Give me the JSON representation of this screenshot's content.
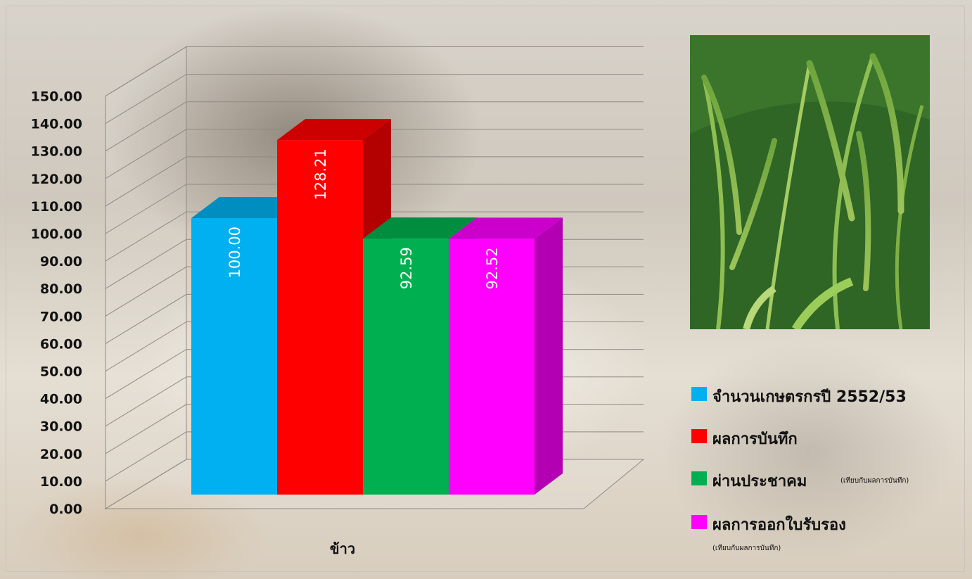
{
  "chart_data": {
    "type": "bar",
    "categories": [
      "ข้าว"
    ],
    "series": [
      {
        "name": "จำนวนเกษตรกรปี  2552/53",
        "values": [
          100.0
        ],
        "color": "#00b0f0"
      },
      {
        "name": "ผลการบันทึก",
        "values": [
          128.21
        ],
        "color": "#ff0000"
      },
      {
        "name": "ผ่านประชาคม",
        "values": [
          92.59
        ],
        "color": "#00b050"
      },
      {
        "name": "ผลการออกใบรับรอง",
        "values": [
          92.52
        ],
        "color": "#ff00ff"
      }
    ],
    "data_labels": [
      "100.00",
      "128.21",
      "92.59",
      "92.52"
    ],
    "ylim": [
      0,
      150
    ],
    "y_ticks": [
      "0.00",
      "10.00",
      "20.00",
      "30.00",
      "40.00",
      "50.00",
      "60.00",
      "70.00",
      "80.00",
      "90.00",
      "100.00",
      "110.00",
      "120.00",
      "130.00",
      "140.00",
      "150.00"
    ],
    "grid": true,
    "legend_position": "right",
    "legend_notes": {
      "ผ่านประชาคม": "(เทียบกับผลการบันทึก)",
      "ผลการออกใบรับรอง": "(เทียบกับผลการบันทึก)"
    },
    "title": "",
    "xlabel": "",
    "ylabel": ""
  },
  "photo": {
    "subject": "rice-plant-icon"
  }
}
